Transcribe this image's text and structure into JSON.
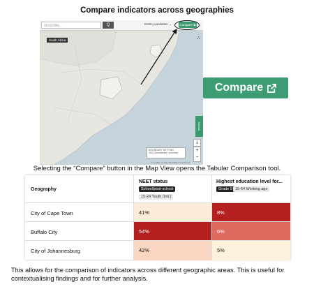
{
  "title": "Compare indicators across geographies",
  "map": {
    "search_placeholder": "unicipality...",
    "search_button": "Q",
    "population_select": "Entire population ⌄",
    "compare_small": "Compare ⧉",
    "country_label": "South Africa",
    "tutorial": "Tutorial",
    "boundary_title": "BOUNDARY SETTING",
    "boundary_value": "2011 Boundaries / province",
    "attribution": "© Leaflet | © OpenStreetMap contributors"
  },
  "big_button": {
    "label": "Compare"
  },
  "caption1": "Selecting the “Compare” button in the Map View opens the Tabular Comparison tool.",
  "table": {
    "geo_header": "Geography",
    "columns": [
      {
        "title": "NEET status",
        "chip1": "School/post-school",
        "chip2": "15-24 Youth (Intl.)"
      },
      {
        "title": "Highest education level for...",
        "chip1": "Grade 9",
        "chip2": "15-64 Working age"
      }
    ],
    "rows": [
      {
        "name": "City of Cape Town",
        "v1": "41%",
        "v2": "8%"
      },
      {
        "name": "Buffalo City",
        "v1": "54%",
        "v2": "6%"
      },
      {
        "name": "City of Johannesburg",
        "v1": "42%",
        "v2": "5%"
      }
    ],
    "colors": {
      "r0c1": "#fdecd8",
      "r0c2": "#b52020",
      "r1c1": "#b52020",
      "r1c2": "#df6a60",
      "r2c1": "#f8d6c2",
      "r2c2": "#fdf1dc"
    }
  },
  "caption2": "This allows for the comparison of indicators across different geographic areas. This is useful for contextualising findings and for further analysis."
}
